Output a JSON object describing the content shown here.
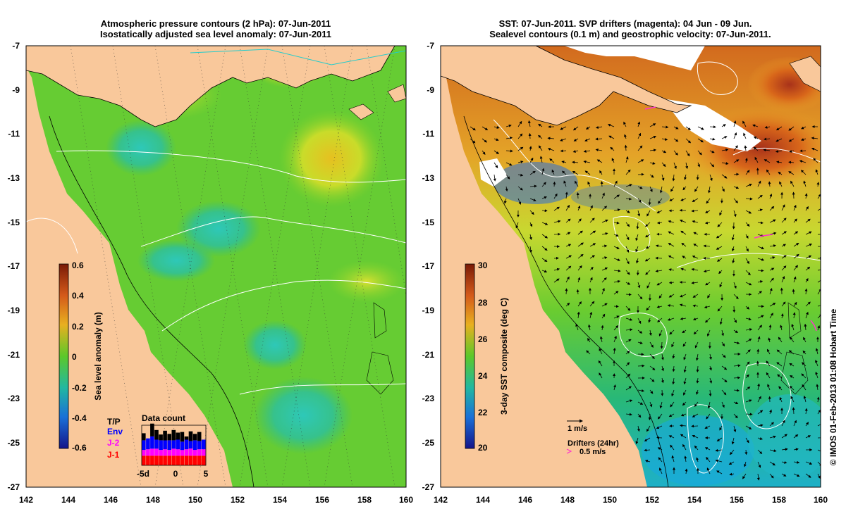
{
  "left_panel": {
    "title_line1": "Atmospheric pressure contours (2 hPa): 07-Jun-2011",
    "title_line2": "Isostatically adjusted sea level anomaly: 07-Jun-2011",
    "y_ticks": [
      "-7",
      "-9",
      "-11",
      "-13",
      "-15",
      "-17",
      "-19",
      "-21",
      "-23",
      "-25",
      "-27"
    ],
    "x_ticks": [
      "142",
      "144",
      "146",
      "148",
      "150",
      "152",
      "154",
      "156",
      "158",
      "160"
    ],
    "colorbar": {
      "label": "Sea level anomaly (m)",
      "ticks": [
        "0.6",
        "0.4",
        "0.2",
        "0",
        "-0.2",
        "-0.4",
        "-0.6"
      ],
      "range": [
        -0.6,
        0.6
      ]
    },
    "data_count": {
      "title": "Data count",
      "legend": [
        "T/P",
        "Env",
        "J-2",
        "J-1"
      ],
      "legend_colors": [
        "#000000",
        "#0000ff",
        "#ff00ff",
        "#ff0000"
      ],
      "x_ticks": [
        "-5d",
        "0",
        "5"
      ],
      "bars": [
        [
          0.22,
          0.3,
          0.18,
          0.3
        ],
        [
          0.0,
          0.34,
          0.2,
          0.3
        ],
        [
          0.4,
          0.38,
          0.22,
          0.3
        ],
        [
          0.3,
          0.28,
          0.22,
          0.3
        ],
        [
          0.18,
          0.3,
          0.18,
          0.3
        ],
        [
          0.3,
          0.28,
          0.2,
          0.3
        ],
        [
          0.2,
          0.3,
          0.18,
          0.3
        ],
        [
          0.32,
          0.26,
          0.22,
          0.3
        ],
        [
          0.22,
          0.3,
          0.2,
          0.3
        ],
        [
          0.3,
          0.26,
          0.18,
          0.3
        ],
        [
          0.1,
          0.3,
          0.2,
          0.3
        ],
        [
          0.3,
          0.24,
          0.22,
          0.3
        ],
        [
          0.2,
          0.3,
          0.18,
          0.3
        ],
        [
          0.28,
          0.26,
          0.2,
          0.3
        ],
        [
          0.0,
          0.3,
          0.2,
          0.3
        ]
      ]
    }
  },
  "right_panel": {
    "title_line1": "SST: 07-Jun-2011. SVP drifters (magenta): 04 Jun - 09 Jun.",
    "title_line2": "Sealevel contours (0.1 m) and geostrophic velocity: 07-Jun-2011.",
    "y_ticks": [
      "-7",
      "-9",
      "-11",
      "-13",
      "-15",
      "-17",
      "-19",
      "-21",
      "-23",
      "-25",
      "-27"
    ],
    "x_ticks": [
      "142",
      "144",
      "146",
      "148",
      "150",
      "152",
      "154",
      "156",
      "158",
      "160"
    ],
    "colorbar": {
      "label": "3-day SST composite (deg C)",
      "ticks": [
        "30",
        "28",
        "26",
        "24",
        "22",
        "20"
      ],
      "range": [
        20,
        30
      ]
    },
    "velocity_scale_label": "1 m/s",
    "drifters_label": "Drifters (24hr)",
    "drifter_scale_label": "0.5 m/s"
  },
  "credit": "© IMOS 01-Feb-2013 01:08 Hobart Time",
  "colors": {
    "land": "#f9c89b",
    "drifter": "#ff33cc"
  }
}
